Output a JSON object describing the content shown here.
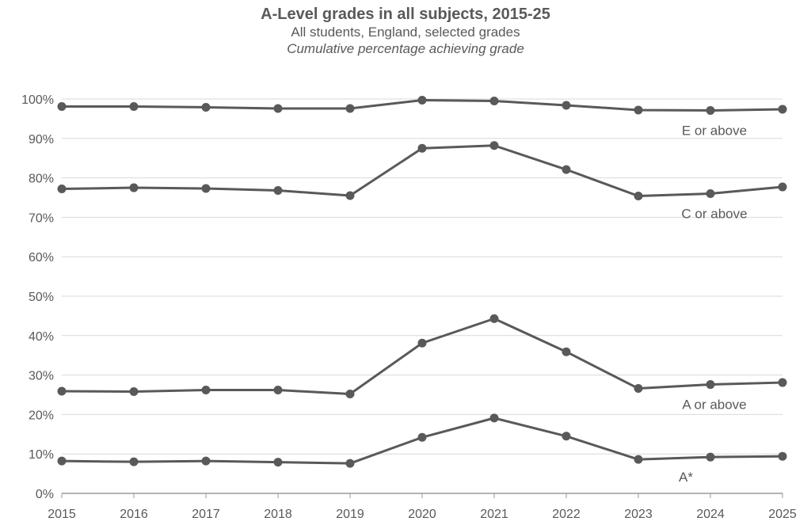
{
  "chart_data": {
    "type": "line",
    "title": "A-Level grades in all subjects, 2015-25",
    "subtitle": "All students, England, selected grades",
    "subtitle2": "Cumulative percentage achieving grade",
    "x": [
      "2015",
      "2016",
      "2017",
      "2018",
      "2019",
      "2020",
      "2021",
      "2022",
      "2023",
      "2024",
      "2025"
    ],
    "y_ticks": [
      "0%",
      "10%",
      "20%",
      "30%",
      "40%",
      "50%",
      "60%",
      "70%",
      "80%",
      "90%",
      "100%"
    ],
    "ylim": [
      0,
      100
    ],
    "grid": true,
    "line_color": "#595959",
    "series": [
      {
        "name": "E or above",
        "values": [
          98.1,
          98.1,
          97.9,
          97.6,
          97.6,
          99.7,
          99.5,
          98.4,
          97.2,
          97.1,
          97.4
        ]
      },
      {
        "name": "C or above",
        "values": [
          77.2,
          77.5,
          77.3,
          76.8,
          75.5,
          87.5,
          88.2,
          82.1,
          75.4,
          76.0,
          77.7
        ]
      },
      {
        "name": "A or above",
        "values": [
          25.9,
          25.8,
          26.2,
          26.2,
          25.2,
          38.1,
          44.3,
          35.9,
          26.6,
          27.6,
          28.1
        ]
      },
      {
        "name": "A*",
        "values": [
          8.2,
          8.0,
          8.2,
          7.9,
          7.6,
          14.2,
          19.1,
          14.5,
          8.6,
          9.2,
          9.4
        ]
      }
    ]
  }
}
